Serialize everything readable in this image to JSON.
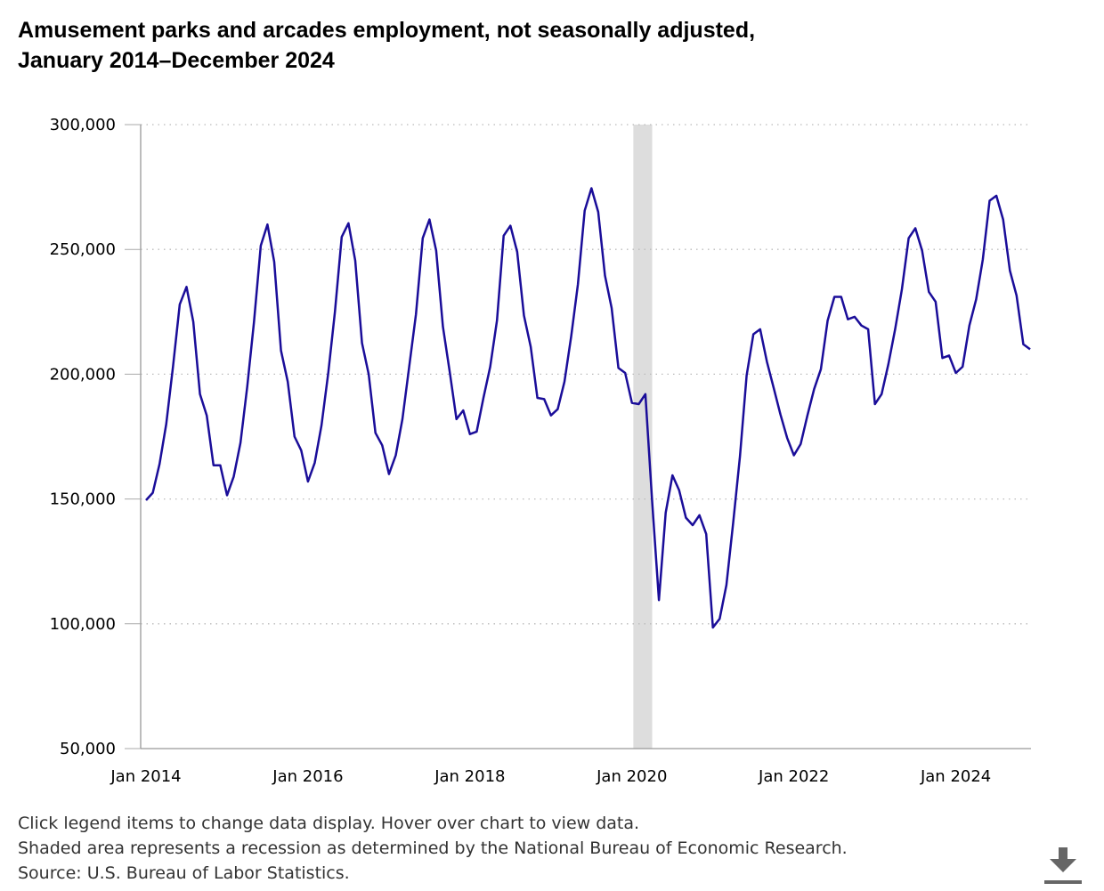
{
  "title": {
    "line1": "Amusement parks and arcades employment, not seasonally adjusted,",
    "line2": "January 2014–December 2024"
  },
  "notes": [
    "Click legend items to change data display. Hover over chart to view data.",
    "Shaded area represents a recession as determined by the National Bureau of Economic Research.",
    "Source: U.S. Bureau of Labor Statistics."
  ],
  "download_icon": "download-icon",
  "chart_data": {
    "type": "line",
    "ylim": [
      50000,
      300000
    ],
    "yticks": [
      50000,
      100000,
      150000,
      200000,
      250000,
      300000
    ],
    "ytick_labels": [
      "50,000",
      "100,000",
      "150,000",
      "200,000",
      "250,000",
      "300,000"
    ],
    "xtick_labels": [
      "Jan 2014",
      "Jan 2016",
      "Jan 2018",
      "Jan 2020",
      "Jan 2022",
      "Jan 2024"
    ],
    "xticks": [
      "2014-01",
      "2016-01",
      "2018-01",
      "2020-01",
      "2022-01",
      "2024-01"
    ],
    "x_start": "2014-01",
    "x_end": "2024-12",
    "grid": "horizontal dotted",
    "recession": {
      "start": "2020-02",
      "end": "2020-04",
      "color": "#dddddd"
    },
    "series": [
      {
        "color": "#1a0d99",
        "values": [
          149500,
          152500,
          164000,
          180000,
          203000,
          228000,
          235000,
          221000,
          192000,
          183500,
          163500,
          163500,
          151500,
          159000,
          172500,
          195000,
          221000,
          251500,
          260000,
          245000,
          209500,
          197000,
          175000,
          169500,
          157000,
          164500,
          179500,
          200500,
          225000,
          255000,
          260500,
          245500,
          212500,
          200000,
          176500,
          171500,
          160000,
          167500,
          182000,
          203000,
          224000,
          254500,
          262000,
          249500,
          219000,
          201000,
          182000,
          185500,
          176000,
          177000,
          190500,
          203000,
          221500,
          255500,
          259500,
          249000,
          223500,
          211000,
          190500,
          190000,
          183500,
          186000,
          197000,
          215000,
          236000,
          265500,
          274500,
          265000,
          239500,
          226500,
          202500,
          200500,
          188500,
          188000,
          192000,
          149000,
          109500,
          144500,
          159500,
          153500,
          142500,
          139500,
          143500,
          136000,
          98500,
          102000,
          115500,
          140500,
          167000,
          199500,
          216000,
          218000,
          205000,
          194500,
          184000,
          174500,
          167500,
          172000,
          183500,
          194000,
          202000,
          221500,
          231000,
          231000,
          222000,
          223000,
          219500,
          218000,
          188000,
          192000,
          204000,
          218000,
          234000,
          254500,
          258500,
          249500,
          233000,
          229000,
          206500,
          207500,
          200500,
          203000,
          219500,
          230000,
          246000,
          269500,
          271500,
          262000,
          241500,
          231500,
          212000,
          210000
        ]
      }
    ]
  }
}
